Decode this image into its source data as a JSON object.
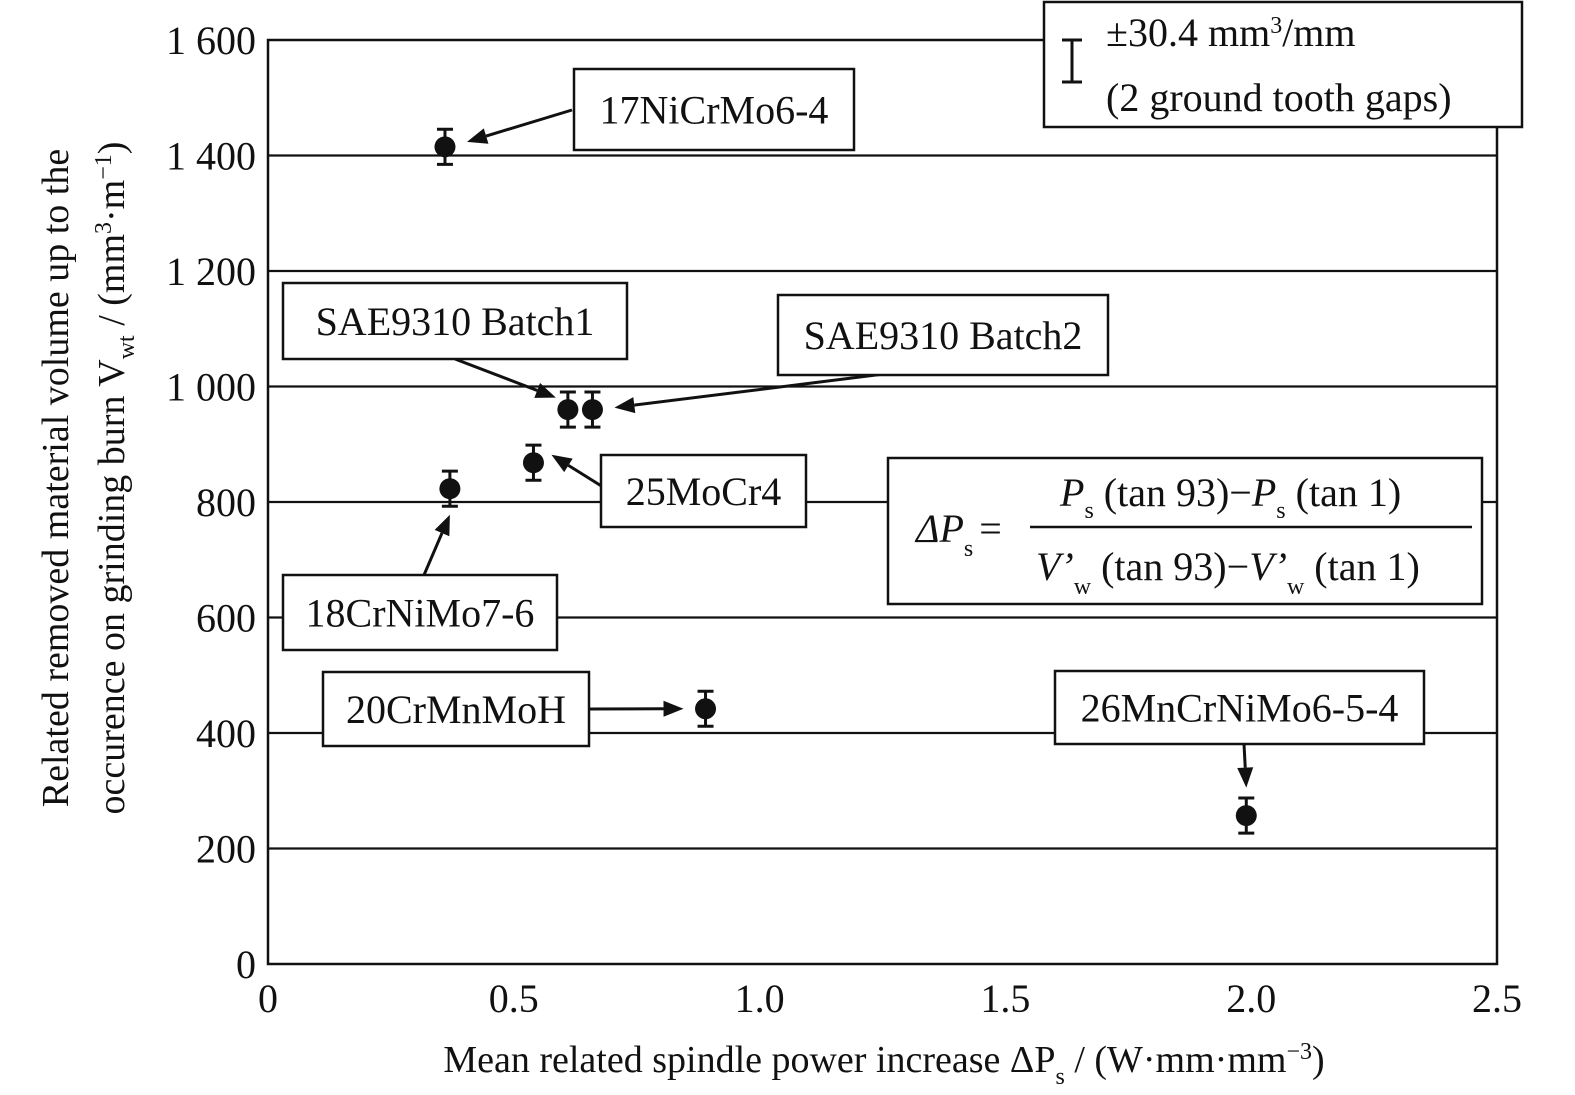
{
  "chart_data": {
    "type": "scatter",
    "xlabel": "Mean related spindle power increase ΔP",
    "xlabel_sub": "s",
    "xlabel_unit": " / (W·mm·mm",
    "xlabel_unit_sup": "−3",
    "xlabel_unit_end": ")",
    "ylabel_line1": "Related removed material volume up to the",
    "ylabel_line2_a": "occurence on grinding burn V",
    "ylabel_line2_sub": "wt",
    "ylabel_line2_b": " / (mm",
    "ylabel_line2_sup1": "3",
    "ylabel_line2_c": "·m",
    "ylabel_line2_sup2": "−1",
    "ylabel_line2_d": ")",
    "xlim": [
      0,
      2.5
    ],
    "ylim": [
      0,
      1600
    ],
    "x_ticks": [
      0,
      0.5,
      1.0,
      1.5,
      2.0,
      2.5
    ],
    "x_tick_labels": [
      "0",
      "0.5",
      "1.0",
      "1.5",
      "2.0",
      "2.5"
    ],
    "y_ticks": [
      0,
      200,
      400,
      600,
      800,
      1000,
      1200,
      1400,
      1600
    ],
    "y_tick_labels": [
      "0",
      "200",
      "400",
      "600",
      "800",
      "1 000",
      "1 200",
      "1 400",
      "1 600"
    ],
    "grid": "horizontal",
    "error_bar": 30.4,
    "points": [
      {
        "label": "17NiCrMo6-4",
        "x": 0.36,
        "y": 1415
      },
      {
        "label": "SAE9310 Batch1",
        "x": 0.61,
        "y": 960
      },
      {
        "label": "SAE9310 Batch2",
        "x": 0.66,
        "y": 960
      },
      {
        "label": "25MoCr4",
        "x": 0.54,
        "y": 868
      },
      {
        "label": "18CrNiMo7-6",
        "x": 0.37,
        "y": 823
      },
      {
        "label": "20CrMnMoH",
        "x": 0.89,
        "y": 442
      },
      {
        "label": "26MnCrNiMo6-5-4",
        "x": 1.99,
        "y": 257
      }
    ],
    "legend": {
      "placement": "top-right",
      "line1": "±30.4 mm",
      "line1_sup": "3",
      "line1_end": "/mm",
      "line2": "(2 ground tooth gaps)"
    },
    "formula": {
      "lhs": "ΔP",
      "lhs_sub": "s",
      "eq": "=",
      "num_a": "P",
      "num_a_sub": "s",
      "num_a_rest": " (tan 93)−",
      "num_b": "P",
      "num_b_sub": "s",
      "num_b_rest": " (tan 1)",
      "den_a": "V’",
      "den_a_sub": "w",
      "den_a_rest": " (tan 93)−",
      "den_b": "V’",
      "den_b_sub": "w",
      "den_b_rest": " (tan 1)"
    }
  }
}
